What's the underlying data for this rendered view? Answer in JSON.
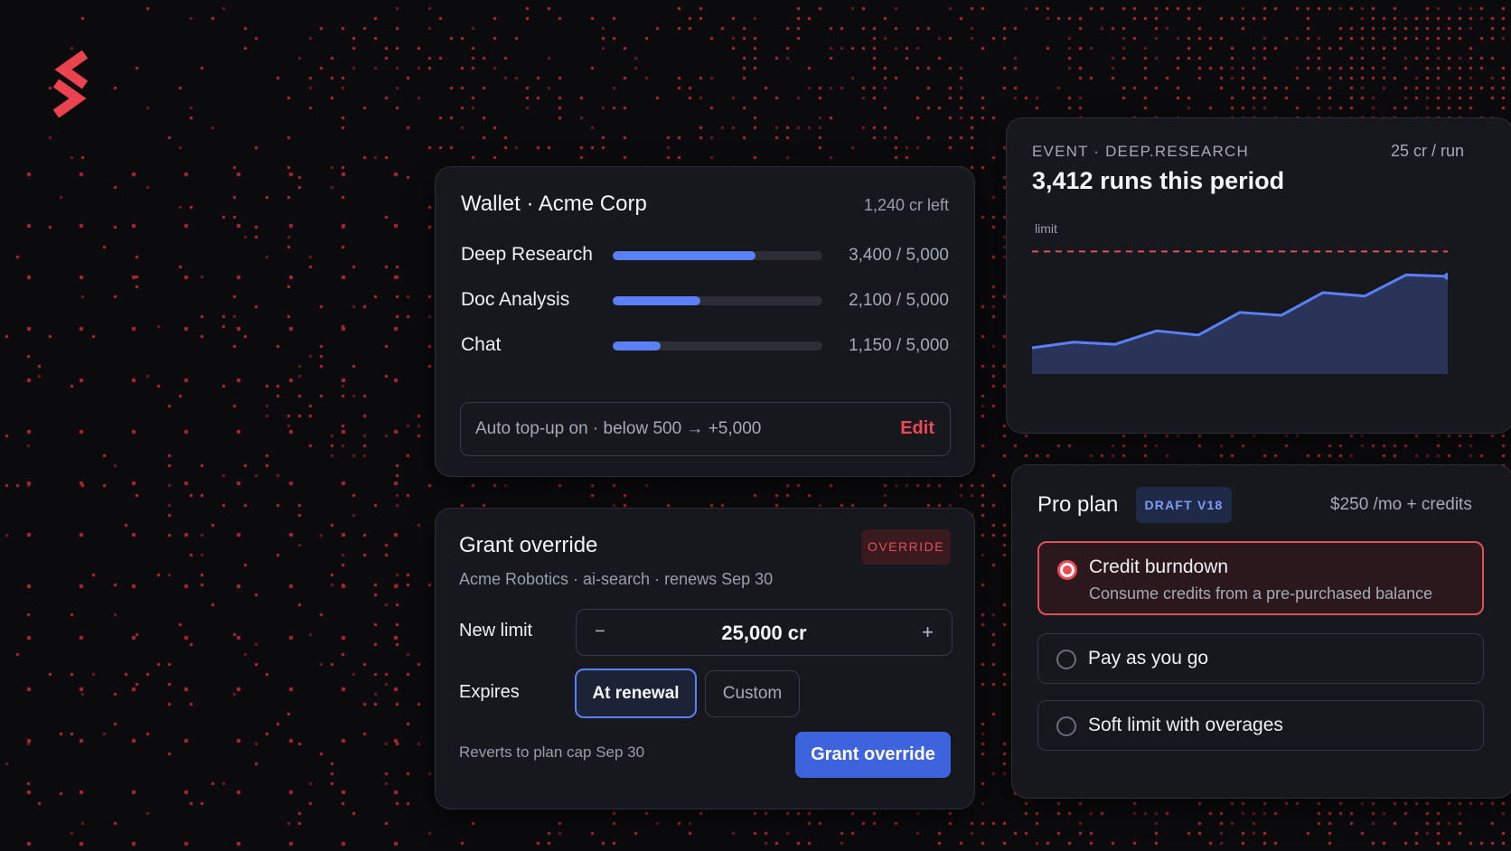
{
  "brand": {
    "logo_icon": "brand-s-logo-icon",
    "accent_color": "#ee4a55"
  },
  "wallet": {
    "title": "Wallet · Acme Corp",
    "credits_left": "1,240 cr left",
    "rows": [
      {
        "label": "Deep Research",
        "value": "3,400 / 5,000",
        "used": 3400,
        "total": 5000
      },
      {
        "label": "Doc Analysis",
        "value": "2,100 / 5,000",
        "used": 2100,
        "total": 5000
      },
      {
        "label": "Chat",
        "value": "1,150 / 5,000",
        "used": 1150,
        "total": 5000
      }
    ],
    "auto_topup": "Auto top-up on · below 500 → +5,000",
    "edit_label": "Edit",
    "bar_color": "#5b7ff7"
  },
  "grant": {
    "title": "Grant override",
    "badge": "OVERRIDE",
    "subtitle": "Acme Robotics · ai-search · renews Sep 30",
    "new_limit_label": "New limit",
    "decrement": "−",
    "increment": "+",
    "limit_value": "25,000 cr",
    "expires_label": "Expires",
    "expires_options": [
      "At renewal",
      "Custom"
    ],
    "expires_selected": "At renewal",
    "revert_note": "Reverts to plan cap Sep 30",
    "submit_label": "Grant override",
    "button_color": "#3d63dd"
  },
  "event": {
    "eyebrow": "EVENT · DEEP.RESEARCH",
    "rate": "25 cr / run",
    "headline": "3,412 runs this period",
    "chart_data": {
      "type": "area",
      "limit_label": "limit",
      "limit_line": "dashed",
      "limit_color": "#e0505a",
      "line_color": "#5b7ff7",
      "fill_color": "#2a3459",
      "values": [
        12,
        20,
        17,
        36,
        30,
        62,
        58,
        90,
        85,
        115,
        113
      ],
      "ylim": [
        -25,
        160
      ],
      "limit_value": 148,
      "axes_visible": false,
      "grid": false
    }
  },
  "plan": {
    "title": "Pro plan",
    "badge": "DRAFT V18",
    "price": "$250 /mo + credits",
    "options": [
      {
        "label": "Credit burndown",
        "description": "Consume credits from a pre-purchased balance",
        "selected": true
      },
      {
        "label": "Pay as you go",
        "selected": false
      },
      {
        "label": "Soft limit with overages",
        "selected": false
      }
    ]
  }
}
